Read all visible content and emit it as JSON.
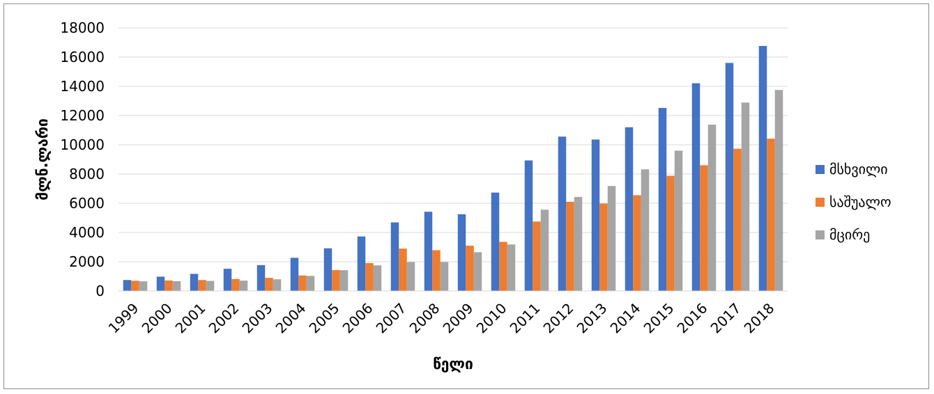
{
  "chart_data": {
    "type": "bar",
    "title": "",
    "xlabel": "წელი",
    "ylabel": "მლნ.ლარი",
    "ylim": [
      0,
      18000
    ],
    "yticks": [
      0,
      2000,
      4000,
      6000,
      8000,
      10000,
      12000,
      14000,
      16000,
      18000
    ],
    "grid": true,
    "legend_position": "right",
    "categories": [
      "1999",
      "2000",
      "2001",
      "2002",
      "2003",
      "2004",
      "2005",
      "2006",
      "2007",
      "2008",
      "2009",
      "2010",
      "2011",
      "2012",
      "2013",
      "2014",
      "2015",
      "2016",
      "2017",
      "2018"
    ],
    "series": [
      {
        "name": "მსხვილი",
        "color": "#4472C4",
        "values": [
          750,
          980,
          1170,
          1520,
          1770,
          2270,
          2920,
          3730,
          4690,
          5420,
          5250,
          6730,
          8930,
          10560,
          10360,
          11200,
          12520,
          14210,
          15600,
          16760
        ]
      },
      {
        "name": "საშუალო",
        "color": "#ED7D31",
        "values": [
          700,
          720,
          750,
          820,
          900,
          1060,
          1430,
          1910,
          2900,
          2790,
          3100,
          3360,
          4750,
          6100,
          5980,
          6550,
          7880,
          8600,
          9730,
          10420
        ]
      },
      {
        "name": "მცირე",
        "color": "#A5A5A5",
        "values": [
          660,
          670,
          690,
          710,
          800,
          1030,
          1420,
          1750,
          1980,
          1980,
          2650,
          3180,
          5560,
          6430,
          7180,
          8320,
          9600,
          11380,
          12890,
          13750
        ]
      }
    ]
  }
}
